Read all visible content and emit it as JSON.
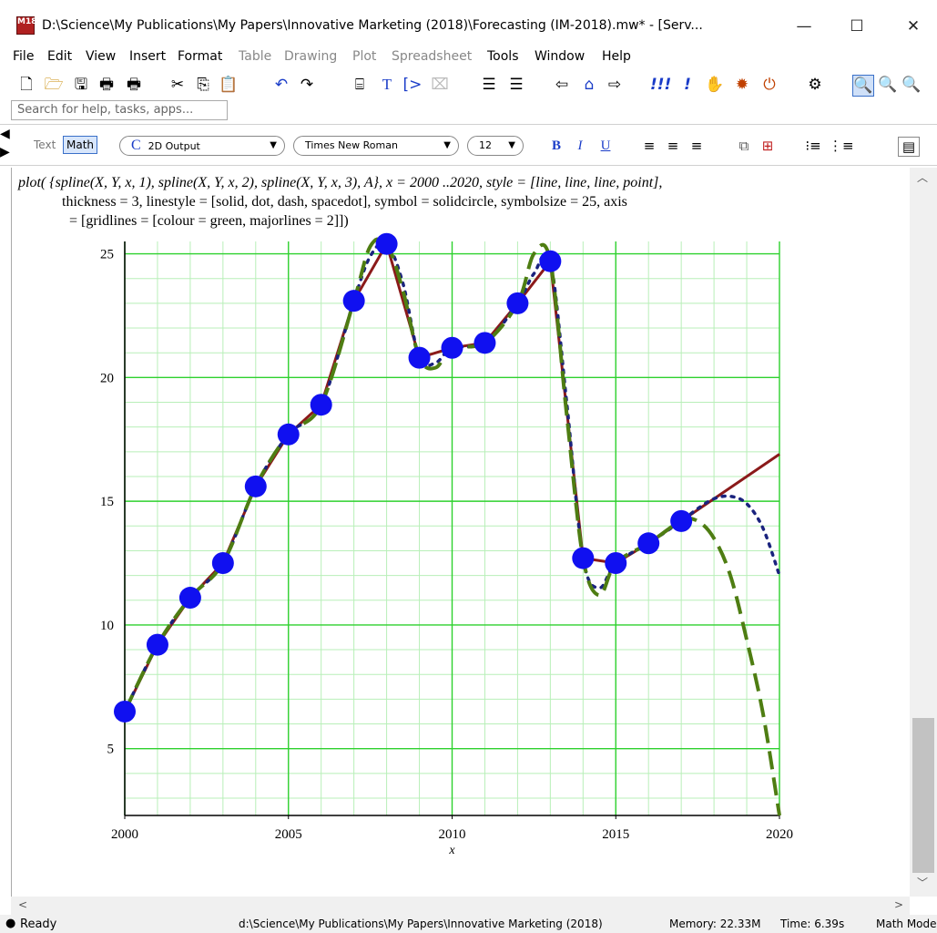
{
  "window": {
    "title": "D:\\Science\\My Publications\\My Papers\\Innovative Marketing (2018)\\Forecasting (IM-2018).mw* - [Serv...",
    "app_icon_text": "M18",
    "minimize": "—",
    "maximize": "☐",
    "close": "✕"
  },
  "menu": [
    {
      "label": "File",
      "enabled": true
    },
    {
      "label": "Edit",
      "enabled": true
    },
    {
      "label": "View",
      "enabled": true
    },
    {
      "label": "Insert",
      "enabled": true
    },
    {
      "label": "Format",
      "enabled": true
    },
    {
      "label": "Table",
      "enabled": false
    },
    {
      "label": "Drawing",
      "enabled": false
    },
    {
      "label": "Plot",
      "enabled": false
    },
    {
      "label": "Spreadsheet",
      "enabled": false
    },
    {
      "label": "Tools",
      "enabled": true
    },
    {
      "label": "Window",
      "enabled": true
    },
    {
      "label": "Help",
      "enabled": true
    }
  ],
  "toolbar": {
    "icons": [
      "new-document-icon",
      "open-folder-icon",
      "save-icon",
      "print-icon",
      "print-preview-icon",
      "cut-icon",
      "copy-icon",
      "paste-icon",
      "undo-icon",
      "redo-icon",
      "insert-math-icon",
      "insert-text-icon",
      "execution-group-icon",
      "delete-icon",
      "indent-icon",
      "outdent-icon",
      "back-icon",
      "home-icon",
      "forward-icon",
      "execute-all-icon",
      "execute-icon",
      "stop-icon",
      "debug-icon",
      "restart-icon",
      "settings-icon",
      "zoom-100-icon",
      "zoom-150-icon",
      "zoom-200-icon"
    ],
    "search_placeholder": "Search for help, tasks, apps..."
  },
  "formatbar": {
    "text_label": "Text",
    "math_label": "Math",
    "style_value": "2D Output",
    "style_glyph": "C",
    "font_value": "Times New Roman",
    "size_value": "12",
    "bold": "B",
    "italic": "I",
    "underline": "U"
  },
  "command": {
    "line1": "plot( {spline(X, Y, x, 1), spline(X, Y, x, 2), spline(X, Y, x, 3), A}, x = 2000 ..2020, style = [line, line, line, point],",
    "line2": "thickness = 3, linestyle = [solid, dot, dash, spacedot], symbol = solidcircle, symbolsize = 25, axis",
    "line3": "= [gridlines = [colour = green, majorlines = 2]])"
  },
  "status": {
    "state": "Ready",
    "path": "d:\\Science\\My Publications\\My Papers\\Innovative Marketing (2018)",
    "memory": "Memory: 22.33M",
    "time": "Time: 6.39s",
    "mode": "Math Mode"
  },
  "colors": {
    "grid": "#2ed12e",
    "grid_minor": "#b8efb8",
    "solid": "#8b1a1a",
    "dot": "#1a237e",
    "dash": "#4e7d12",
    "points": "#1010f0"
  },
  "chart_data": {
    "type": "line",
    "xlabel": "x",
    "xlim": [
      2000,
      2020
    ],
    "ylim": [
      2.3,
      25.5
    ],
    "x_ticks": [
      2000,
      2005,
      2010,
      2015,
      2020
    ],
    "y_ticks": [
      5,
      10,
      15,
      20,
      25
    ],
    "grid": true,
    "series": [
      {
        "style": "solid",
        "x": [
          2000,
          2001,
          2002,
          2003,
          2004,
          2005,
          2006,
          2007,
          2008,
          2009,
          2010,
          2011,
          2012,
          2013,
          2014,
          2015,
          2016,
          2017,
          2020
        ],
        "y": [
          6.5,
          9.2,
          11.1,
          12.5,
          15.6,
          17.7,
          18.9,
          23.1,
          25.4,
          20.8,
          21.2,
          21.4,
          23.0,
          24.7,
          12.7,
          12.5,
          13.3,
          14.2,
          16.9
        ]
      },
      {
        "style": "dot",
        "x": [
          2000,
          2001,
          2002,
          2003,
          2004,
          2005,
          2006,
          2007,
          2007.5,
          2008,
          2008.5,
          2009,
          2009.5,
          2010,
          2011,
          2012,
          2012.5,
          2013,
          2013.5,
          2014,
          2014.5,
          2015,
          2016,
          2017,
          2017.5,
          2018,
          2018.5,
          2019,
          2019.5,
          2020
        ],
        "y": [
          6.5,
          9.2,
          11.1,
          12.5,
          15.6,
          17.7,
          18.9,
          23.1,
          24.9,
          25.4,
          23.8,
          20.8,
          20.6,
          21.2,
          21.4,
          23.0,
          24.2,
          24.7,
          19.0,
          12.7,
          11.5,
          12.5,
          13.3,
          14.2,
          14.7,
          15.1,
          15.2,
          14.9,
          13.9,
          12.0
        ]
      },
      {
        "style": "dash",
        "x": [
          2000,
          2001,
          2002,
          2003,
          2004,
          2005,
          2006,
          2007,
          2007.5,
          2008,
          2008.5,
          2009,
          2009.5,
          2010,
          2011,
          2012,
          2012.5,
          2013,
          2013.5,
          2014,
          2014.5,
          2015,
          2016,
          2017,
          2017.5,
          2018,
          2018.5,
          2019,
          2019.5,
          2020
        ],
        "y": [
          6.5,
          9.2,
          11.1,
          12.5,
          15.6,
          17.7,
          18.9,
          23.1,
          25.3,
          25.4,
          23.5,
          20.8,
          20.4,
          21.2,
          21.4,
          23.0,
          25.0,
          24.7,
          18.5,
          12.7,
          11.2,
          12.5,
          13.3,
          14.2,
          14.2,
          13.5,
          12.0,
          9.4,
          6.4,
          2.3
        ]
      },
      {
        "style": "points",
        "x": [
          2000,
          2001,
          2002,
          2003,
          2004,
          2005,
          2006,
          2007,
          2008,
          2009,
          2010,
          2011,
          2012,
          2013,
          2014,
          2015,
          2016,
          2017
        ],
        "y": [
          6.5,
          9.2,
          11.1,
          12.5,
          15.6,
          17.7,
          18.9,
          23.1,
          25.4,
          20.8,
          21.2,
          21.4,
          23.0,
          24.7,
          12.7,
          12.5,
          13.3,
          14.2
        ]
      }
    ]
  }
}
